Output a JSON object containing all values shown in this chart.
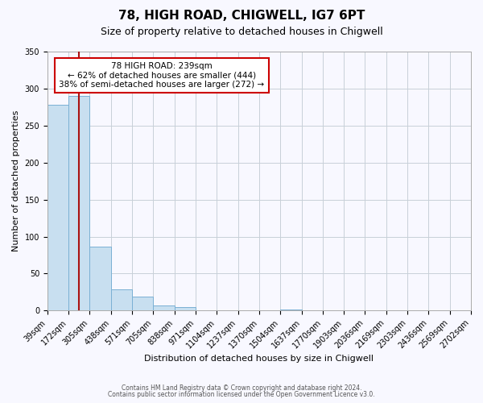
{
  "title": "78, HIGH ROAD, CHIGWELL, IG7 6PT",
  "subtitle": "Size of property relative to detached houses in Chigwell",
  "xlabel": "Distribution of detached houses by size in Chigwell",
  "ylabel": "Number of detached properties",
  "bin_edges": [
    39,
    172,
    305,
    438,
    571,
    705,
    838,
    971,
    1104,
    1237,
    1370,
    1504,
    1637,
    1770,
    1903,
    2036,
    2169,
    2303,
    2436,
    2569,
    2702
  ],
  "bin_labels": [
    "39sqm",
    "172sqm",
    "305sqm",
    "438sqm",
    "571sqm",
    "705sqm",
    "838sqm",
    "971sqm",
    "1104sqm",
    "1237sqm",
    "1370sqm",
    "1504sqm",
    "1637sqm",
    "1770sqm",
    "1903sqm",
    "2036sqm",
    "2169sqm",
    "2303sqm",
    "2436sqm",
    "2569sqm",
    "2702sqm"
  ],
  "counts": [
    278,
    290,
    87,
    29,
    19,
    7,
    5,
    0,
    0,
    0,
    0,
    2,
    0,
    0,
    0,
    0,
    0,
    0,
    0,
    0,
    2
  ],
  "bar_color": "#c8dff0",
  "bar_edge_color": "#7ab0d4",
  "grid_color": "#c8d0d8",
  "property_size": 239,
  "vline_color": "#aa1111",
  "annotation_text": "78 HIGH ROAD: 239sqm\n← 62% of detached houses are smaller (444)\n38% of semi-detached houses are larger (272) →",
  "annotation_box_color": "#ffffff",
  "annotation_box_edge_color": "#cc0000",
  "ylim": [
    0,
    350
  ],
  "yticks": [
    0,
    50,
    100,
    150,
    200,
    250,
    300,
    350
  ],
  "footer_line1": "Contains HM Land Registry data © Crown copyright and database right 2024.",
  "footer_line2": "Contains public sector information licensed under the Open Government Licence v3.0.",
  "background_color": "#f8f8ff"
}
